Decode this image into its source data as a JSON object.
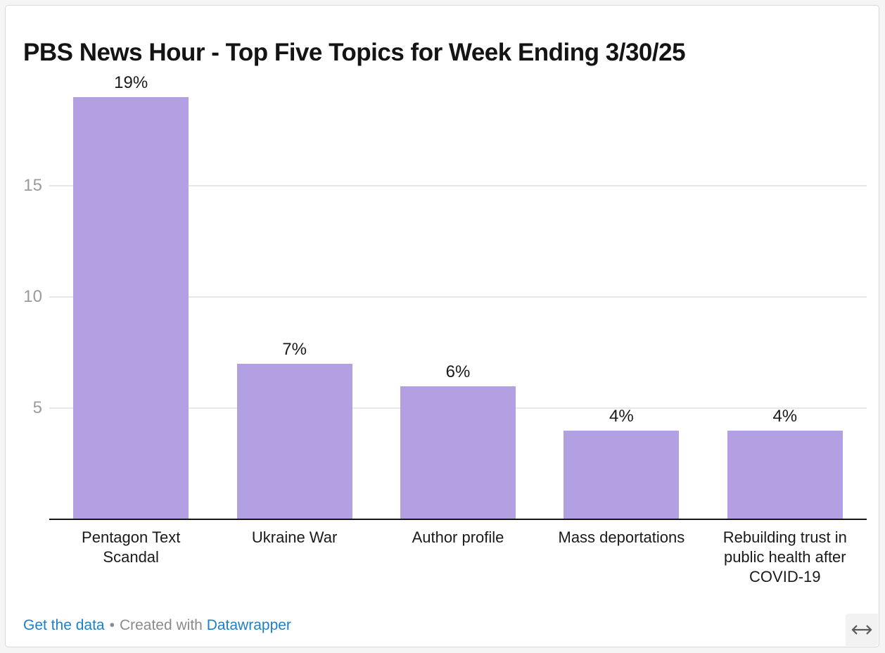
{
  "header": {
    "title": "PBS News Hour - Top Five Topics for Week Ending 3/30/25"
  },
  "chart_data": {
    "type": "bar",
    "title": "PBS News Hour - Top Five Topics for Week Ending 3/30/25",
    "categories": [
      "Pentagon Text Scandal",
      "Ukraine War",
      "Author profile",
      "Mass deportations",
      "Rebuilding trust in public health after COVID-19"
    ],
    "values": [
      19,
      7,
      6,
      4,
      4
    ],
    "value_labels": [
      "19%",
      "7%",
      "6%",
      "4%",
      "4%"
    ],
    "xlabel": "",
    "ylabel": "",
    "yticks": [
      5,
      10,
      15
    ],
    "ytick_labels": [
      "5",
      "10",
      "15"
    ],
    "ylim": [
      0,
      20
    ],
    "grid": true,
    "legend_position": "none",
    "bar_color": "#b2a0e2",
    "axis_color": "#161616",
    "gridline_color": "#e7e7e7",
    "tick_label_color": "#9b9b9b",
    "value_label_color": "#1a1a1a"
  },
  "footer": {
    "get_data_label": "Get the data",
    "separator": "•",
    "created_with": "Created with",
    "brand": "Datawrapper",
    "link_color": "#1e80c5"
  },
  "controls": {
    "expand_icon": "left-right-arrow"
  }
}
